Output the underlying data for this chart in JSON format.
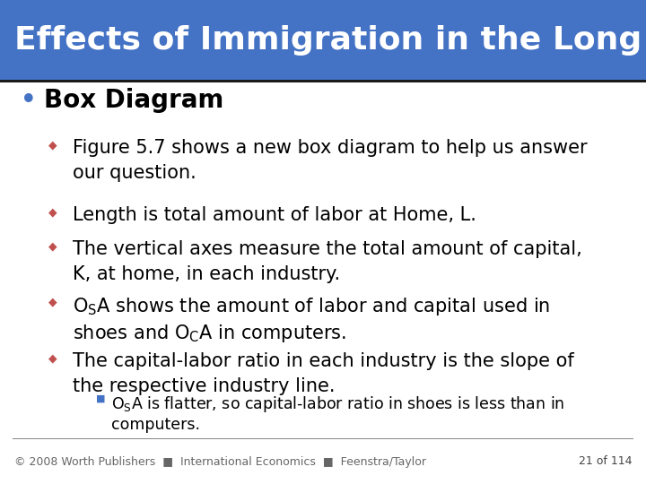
{
  "title": "Effects of Immigration in the Long Run",
  "title_bg_color": "#4472C4",
  "title_text_color": "#FFFFFF",
  "title_fontsize": 26,
  "bg_color": "#FFFFFF",
  "bullet_main_color": "#4472C4",
  "sub_bullet_color": "#C0504D",
  "sub_sub_bullet_color": "#4472C4",
  "bullet_main": "Box Diagram",
  "bullet_main_fontsize": 20,
  "sub_bullet_fontsize": 15,
  "sub_sub_bullet_fontsize": 12.5,
  "footer_text": "© 2008 Worth Publishers  ■  International Economics  ■  Feenstra/Taylor",
  "footer_page": "21 of 114",
  "footer_fontsize": 9
}
